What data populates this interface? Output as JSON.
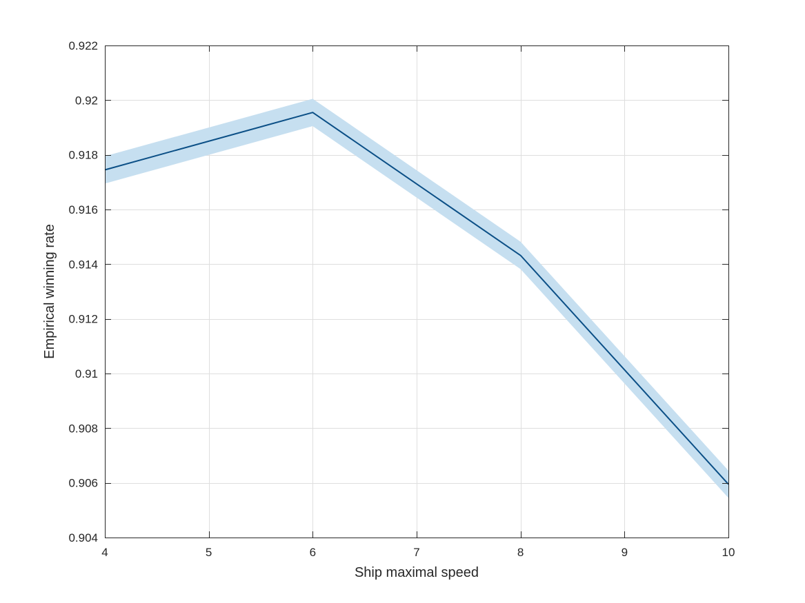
{
  "chart_data": {
    "type": "line",
    "title": "",
    "xlabel": "Ship maximal speed",
    "ylabel": "Empirical winning rate",
    "xlim": [
      4,
      10
    ],
    "ylim": [
      0.904,
      0.922
    ],
    "grid": true,
    "xticks": [
      "4",
      "5",
      "6",
      "7",
      "8",
      "9",
      "10"
    ],
    "yticks": [
      "0.904",
      "0.906",
      "0.908",
      "0.91",
      "0.912",
      "0.914",
      "0.916",
      "0.918",
      "0.92",
      "0.922"
    ],
    "series": [
      {
        "x": [
          4,
          6,
          8,
          10
        ],
        "y": [
          0.91745,
          0.91955,
          0.91432,
          0.90595
        ],
        "lower": [
          0.91695,
          0.91905,
          0.91382,
          0.90545
        ],
        "upper": [
          0.91795,
          0.92005,
          0.91482,
          0.90645
        ],
        "color": "#0b4f86",
        "band_color": "#c6dff0"
      }
    ]
  }
}
